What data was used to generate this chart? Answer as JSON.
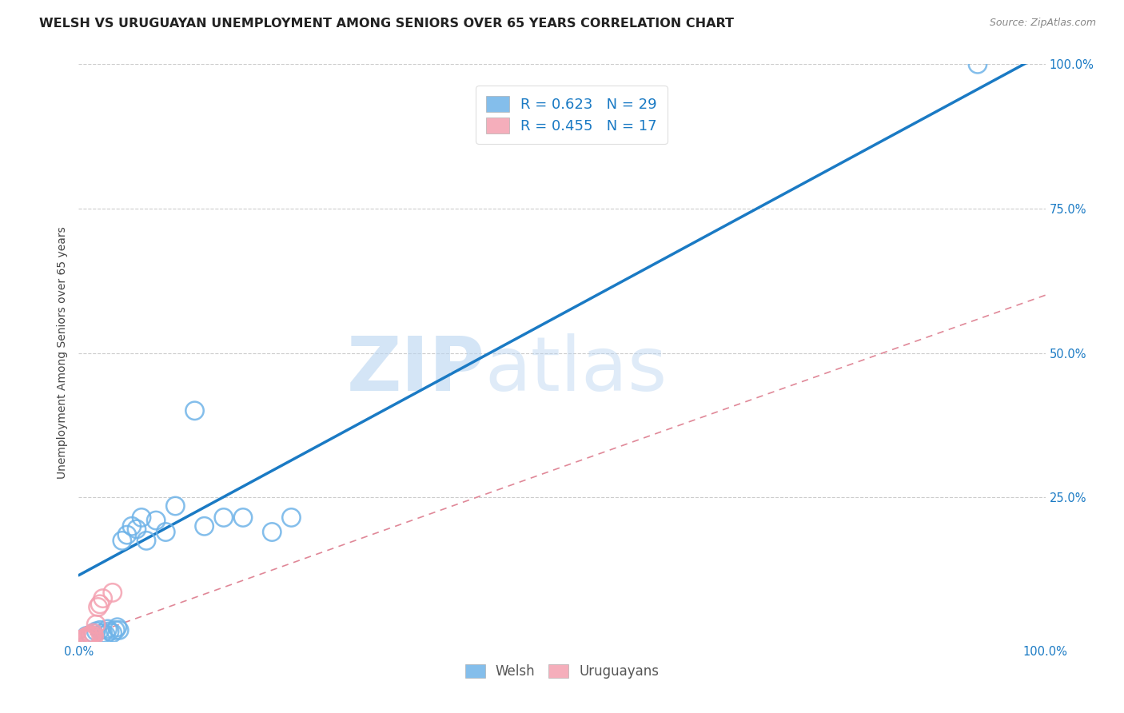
{
  "title": "WELSH VS URUGUAYAN UNEMPLOYMENT AMONG SENIORS OVER 65 YEARS CORRELATION CHART",
  "source": "Source: ZipAtlas.com",
  "ylabel": "Unemployment Among Seniors over 65 years",
  "xlim": [
    0,
    1.0
  ],
  "ylim": [
    0,
    1.0
  ],
  "welsh_color": "#6eb3e8",
  "uruguayan_color": "#f4a0b0",
  "welsh_R": 0.623,
  "welsh_N": 29,
  "uruguayan_R": 0.455,
  "uruguayan_N": 17,
  "watermark_zip": "ZIP",
  "watermark_atlas": "atlas",
  "background_color": "#ffffff",
  "grid_color": "#cccccc",
  "welsh_points_x": [
    0.008,
    0.012,
    0.015,
    0.018,
    0.022,
    0.025,
    0.028,
    0.03,
    0.032,
    0.035,
    0.038,
    0.04,
    0.042,
    0.045,
    0.05,
    0.055,
    0.06,
    0.065,
    0.07,
    0.08,
    0.09,
    0.1,
    0.13,
    0.15,
    0.17,
    0.2,
    0.22,
    0.93,
    0.12
  ],
  "welsh_points_y": [
    0.01,
    0.012,
    0.015,
    0.018,
    0.02,
    0.015,
    0.012,
    0.022,
    0.018,
    0.015,
    0.02,
    0.025,
    0.02,
    0.175,
    0.185,
    0.2,
    0.195,
    0.215,
    0.175,
    0.21,
    0.19,
    0.235,
    0.2,
    0.215,
    0.215,
    0.19,
    0.215,
    1.0,
    0.4
  ],
  "uruguayan_points_x": [
    0.005,
    0.006,
    0.007,
    0.008,
    0.009,
    0.01,
    0.011,
    0.012,
    0.013,
    0.014,
    0.015,
    0.016,
    0.018,
    0.02,
    0.022,
    0.025,
    0.035
  ],
  "uruguayan_points_y": [
    0.005,
    0.006,
    0.007,
    0.008,
    0.009,
    0.01,
    0.008,
    0.01,
    0.012,
    0.01,
    0.015,
    0.01,
    0.03,
    0.06,
    0.065,
    0.075,
    0.085
  ],
  "welsh_line_x0": 0.0,
  "welsh_line_y0": 0.115,
  "welsh_line_x1": 1.0,
  "welsh_line_y1": 1.02,
  "uruguayan_line_x0": 0.0,
  "uruguayan_line_y0": 0.005,
  "uruguayan_line_x1": 1.0,
  "uruguayan_line_y1": 0.6
}
